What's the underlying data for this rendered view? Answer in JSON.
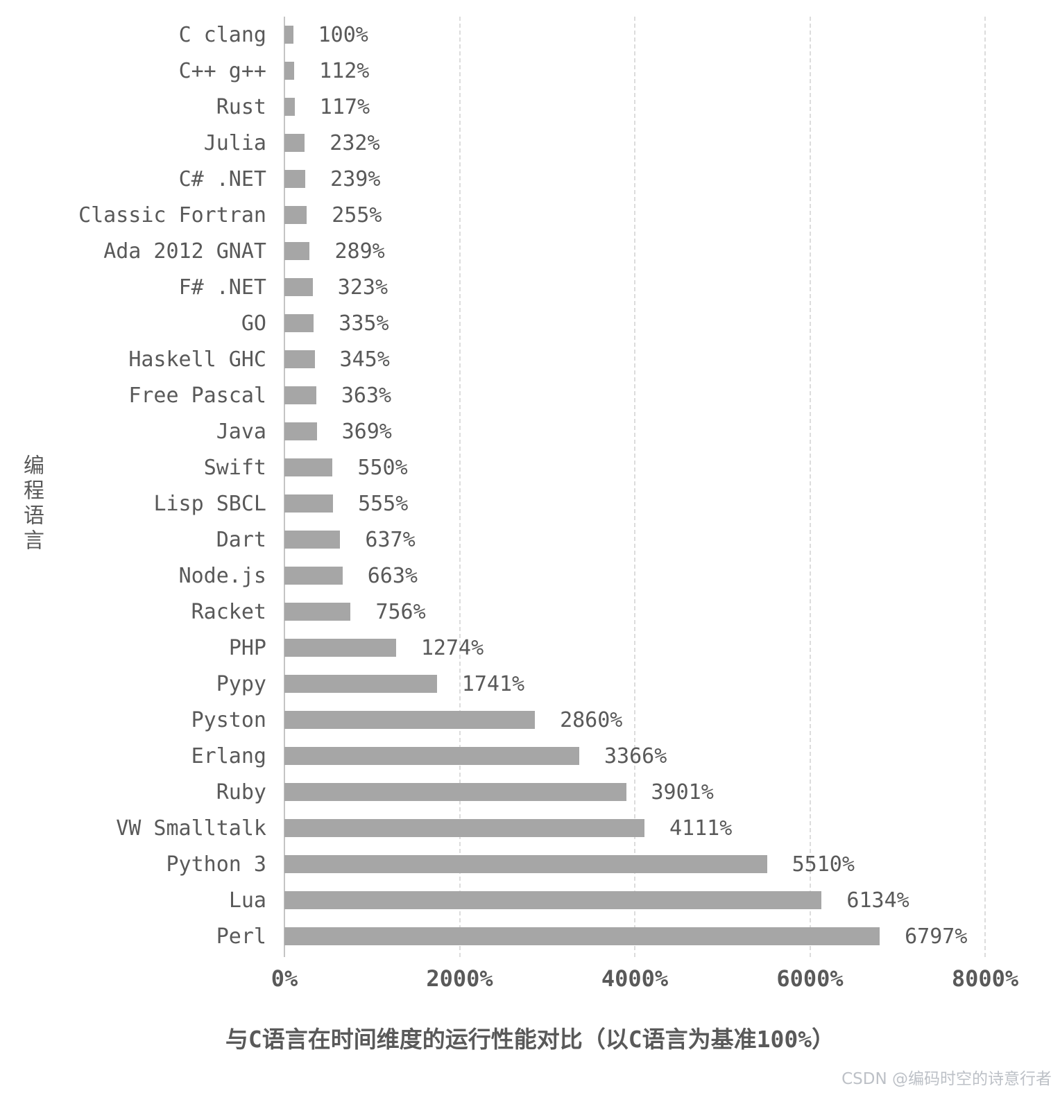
{
  "chart_data": {
    "type": "bar",
    "orientation": "horizontal",
    "title": "",
    "xlabel": "与C语言在时间维度的运行性能对比（以C语言为基准100%）",
    "ylabel": "编程语言",
    "xlim": [
      0,
      8000
    ],
    "x_ticks": [
      "0%",
      "2000%",
      "4000%",
      "6000%",
      "8000%"
    ],
    "grid": "vertical-dashed",
    "bar_color": "#a6a6a6",
    "categories": [
      "C clang",
      "C++ g++",
      "Rust",
      "Julia",
      "C# .NET",
      "Classic Fortran",
      "Ada 2012 GNAT",
      "F# .NET",
      "GO",
      "Haskell GHC",
      "Free Pascal",
      "Java",
      "Swift",
      "Lisp SBCL",
      "Dart",
      "Node.js",
      "Racket",
      "PHP",
      "Pypy",
      "Pyston",
      "Erlang",
      "Ruby",
      "VW Smalltalk",
      "Python 3",
      "Lua",
      "Perl"
    ],
    "values": [
      100,
      112,
      117,
      232,
      239,
      255,
      289,
      323,
      335,
      345,
      363,
      369,
      550,
      555,
      637,
      663,
      756,
      1274,
      1741,
      2860,
      3366,
      3901,
      4111,
      5510,
      6134,
      6797
    ],
    "value_labels": [
      "100%",
      "112%",
      "117%",
      "232%",
      "239%",
      "255%",
      "289%",
      "323%",
      "335%",
      "345%",
      "363%",
      "369%",
      "550%",
      "555%",
      "637%",
      "663%",
      "756%",
      "1274%",
      "1741%",
      "2860%",
      "3366%",
      "3901%",
      "4111%",
      "5510%",
      "6134%",
      "6797%"
    ]
  },
  "watermark": "CSDN @编码时空的诗意行者"
}
